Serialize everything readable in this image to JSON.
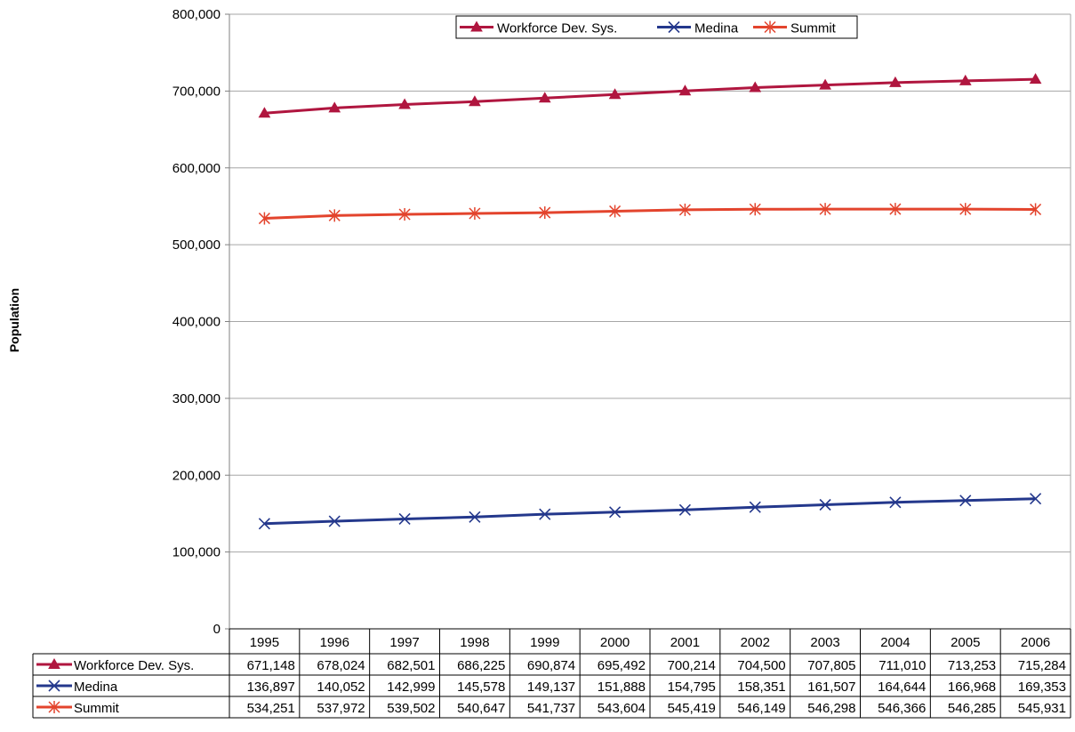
{
  "chart_data": {
    "type": "line",
    "title": "",
    "xlabel": "",
    "ylabel": "Population",
    "ylim": [
      0,
      800000
    ],
    "y_ticks": [
      "0",
      "100,000",
      "200,000",
      "300,000",
      "400,000",
      "500,000",
      "600,000",
      "700,000",
      "800,000"
    ],
    "grid": "horizontal",
    "legend_position": "top-center",
    "categories": [
      "1995",
      "1996",
      "1997",
      "1998",
      "1999",
      "2000",
      "2001",
      "2002",
      "2003",
      "2004",
      "2005",
      "2006"
    ],
    "series": [
      {
        "name": "Workforce Dev. Sys.",
        "color": "#b0163f",
        "marker": "triangle",
        "values": [
          671148,
          678024,
          682501,
          686225,
          690874,
          695492,
          700214,
          704500,
          707805,
          711010,
          713253,
          715284
        ],
        "labels": [
          "671,148",
          "678,024",
          "682,501",
          "686,225",
          "690,874",
          "695,492",
          "700,214",
          "704,500",
          "707,805",
          "711,010",
          "713,253",
          "715,284"
        ]
      },
      {
        "name": "Medina",
        "color": "#24388c",
        "marker": "x",
        "values": [
          136897,
          140052,
          142999,
          145578,
          149137,
          151888,
          154795,
          158351,
          161507,
          164644,
          166968,
          169353
        ],
        "labels": [
          "136,897",
          "140,052",
          "142,999",
          "145,578",
          "149,137",
          "151,888",
          "154,795",
          "158,351",
          "161,507",
          "164,644",
          "166,968",
          "169,353"
        ]
      },
      {
        "name": "Summit",
        "color": "#e3442d",
        "marker": "asterisk",
        "values": [
          534251,
          537972,
          539502,
          540647,
          541737,
          543604,
          545419,
          546149,
          546298,
          546366,
          546285,
          545931
        ],
        "labels": [
          "534,251",
          "537,972",
          "539,502",
          "540,647",
          "541,737",
          "543,604",
          "545,419",
          "546,149",
          "546,298",
          "546,366",
          "546,285",
          "545,931"
        ]
      }
    ]
  }
}
